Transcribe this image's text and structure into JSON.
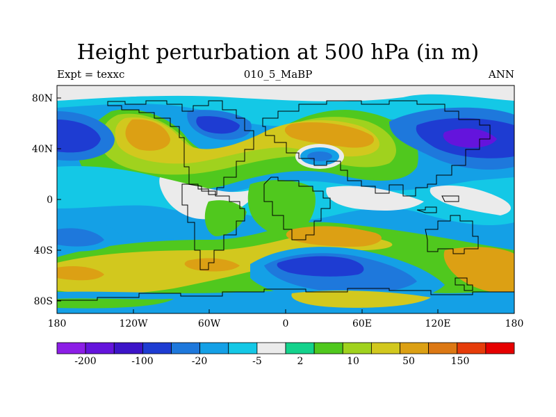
{
  "title": "Height perturbation at 500 hPa (in m)",
  "left_subtitle": "Expt = texxc",
  "center_subtitle": "010_5_MaBP",
  "right_subtitle": "ANN",
  "x_ticks": [
    "180",
    "120W",
    "60W",
    "0",
    "60E",
    "120E",
    "180"
  ],
  "y_ticks": [
    "80N",
    "40N",
    "0",
    "40S",
    "80S"
  ],
  "colorbar": {
    "colors": [
      "#8c1ee6",
      "#6414dc",
      "#3c14c8",
      "#1e3cd2",
      "#1e78dc",
      "#14a0e6",
      "#14c8e6",
      "#ebebeb",
      "#14d28c",
      "#50c81e",
      "#a0d21e",
      "#d2c81e",
      "#dca014",
      "#dc7814",
      "#e63c0a",
      "#e60000"
    ],
    "labels": [
      "-200",
      "-100",
      "-20",
      "-5",
      "2",
      "10",
      "50",
      "150"
    ]
  }
}
